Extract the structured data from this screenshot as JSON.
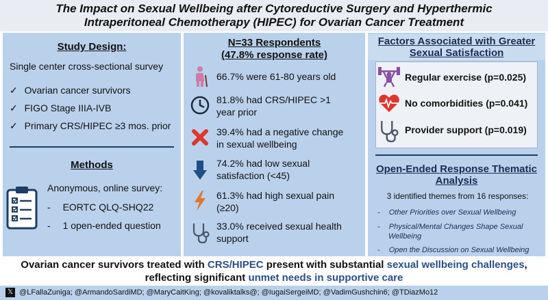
{
  "title": {
    "line1": "The Impact on Sexual Wellbeing after Cytoreductive Surgery and Hyperthermic",
    "line2": "Intraperitoneal Chemotherapy (HIPEC) for Ovarian Cancer Treatment"
  },
  "left": {
    "study_design_heading": "Study Design:",
    "study_design_desc": "Single center cross-sectional survey",
    "criteria": [
      "Ovarian cancer survivors",
      "FIGO Stage IIIA-IVB",
      "Primary CRS/HIPEC ≥3 mos. prior"
    ],
    "check_glyph": "✓",
    "methods_heading": "Methods",
    "methods_desc": "Anonymous, online survey:",
    "methods_items": [
      "EORTC QLQ-SHQ22",
      "1 open-ended question"
    ],
    "dash": "-"
  },
  "middle": {
    "heading_line1": "N=33 Respondents",
    "heading_line2": "(47.8% response rate)",
    "stats": [
      {
        "text1": "66.7% were 61-80 years old",
        "text2": "",
        "icon": "elderly-person-icon"
      },
      {
        "text1": "81.8% had CRS/HIPEC >1",
        "text2": "year prior",
        "icon": "clock-icon"
      },
      {
        "text1": "39.4% had a negative change",
        "text2": "in sexual wellbeing",
        "icon": "red-x-icon"
      },
      {
        "text1": "74.2% had low sexual",
        "text2": "satisfaction (<45)",
        "icon": "down-arrow-icon"
      },
      {
        "text1": "61.3% had high sexual pain",
        "text2": "(≥20)",
        "icon": "lightning-icon"
      },
      {
        "text1": "33.0% received sexual health",
        "text2": "support",
        "icon": "stethoscope-icon"
      }
    ]
  },
  "right": {
    "factors_heading_line1": "Factors Associated with Greater",
    "factors_heading_line2": "Sexual Satisfaction",
    "factors": [
      {
        "label": "Regular exercise (p=0.025)",
        "icon": "weightlifter-icon"
      },
      {
        "label": "No comorbidities (p=0.041)",
        "icon": "heart-monitor-icon"
      },
      {
        "label": "Provider support (p=0.019)",
        "icon": "stethoscope-icon"
      }
    ],
    "open_heading_line1": "Open-Ended Response Thematic",
    "open_heading_line2": "Analysis",
    "themes_intro": "3 identified themes from 16 responses:",
    "themes": [
      {
        "l1": "Other Priorities over Sexual Wellbeing",
        "l2": ""
      },
      {
        "l1": "Physical/Mental Changes Shape Sexual",
        "l2": "Wellbeing"
      },
      {
        "l1": "Open the Discussion on Sexual Wellbeing",
        "l2": ""
      }
    ],
    "dash": "-"
  },
  "footer": {
    "l1_a": "Ovarian cancer survivors treated with ",
    "l1_b": "CRS/HIPEC",
    "l1_c": " present with substantial ",
    "l1_d": "sexual wellbeing challenges",
    "l1_e": ",",
    "l2_a": "reflecting significant ",
    "l2_b": "unmet needs in supportive care",
    "handles": "@LFallaZuniga; @ArmandoSardiMD; @MaryCaitKing; @kovaliktalks@; @IugaiSergeiMD; @VadimGushchin6; @TDiazMo12",
    "x_glyph": "𝕏"
  },
  "colors": {
    "panel": "#b9d1ea",
    "navy": "#1f3d63",
    "red": "#e0352b",
    "purple": "#8a4fa0",
    "orange": "#e0782b",
    "blue": "#3a78c2"
  }
}
